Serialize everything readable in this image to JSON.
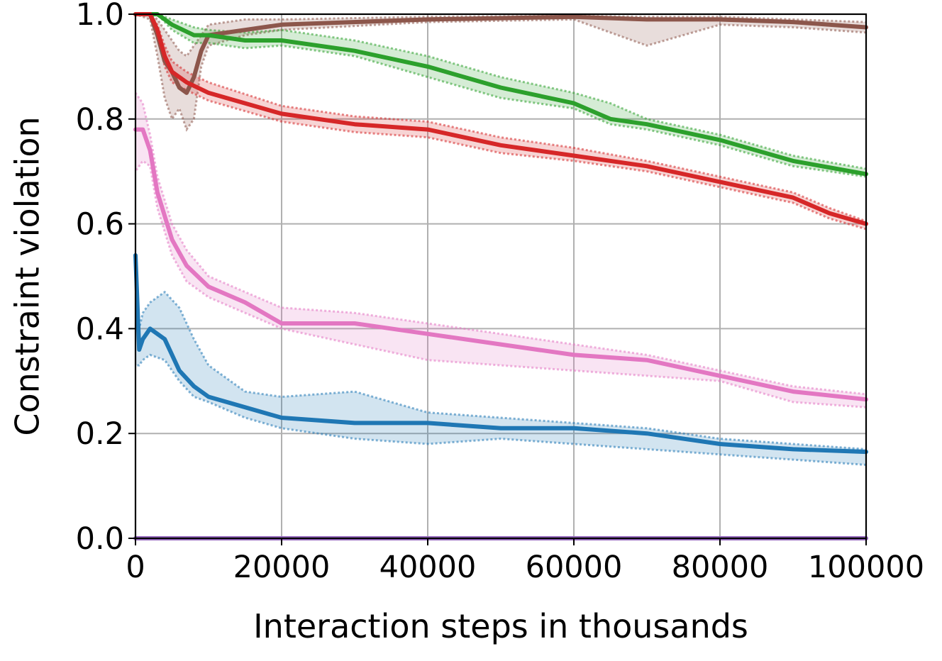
{
  "chart_data": {
    "type": "line",
    "title": "",
    "xlabel": "Interaction steps in thousands",
    "ylabel": "Constraint violation",
    "xlim": [
      0,
      100000
    ],
    "ylim": [
      0.0,
      1.0
    ],
    "xticks": [
      0,
      20000,
      40000,
      60000,
      80000,
      100000
    ],
    "xtick_labels": [
      "0",
      "20000",
      "40000",
      "60000",
      "80000",
      "100000"
    ],
    "yticks": [
      0.0,
      0.2,
      0.4,
      0.6,
      0.8,
      1.0
    ],
    "ytick_labels": [
      "0.0",
      "0.2",
      "0.4",
      "0.6",
      "0.8",
      "1.0"
    ],
    "grid": true,
    "legend": "none",
    "series": [
      {
        "color": "#8c564b",
        "x": [
          0,
          2000,
          3000,
          4000,
          5000,
          6000,
          7000,
          8000,
          9000,
          10000,
          15000,
          20000,
          40000,
          60000,
          70000,
          80000,
          90000,
          100000
        ],
        "y": [
          1.0,
          1.0,
          0.96,
          0.91,
          0.89,
          0.86,
          0.85,
          0.88,
          0.93,
          0.96,
          0.97,
          0.98,
          0.99,
          0.995,
          0.99,
          0.99,
          0.985,
          0.975
        ],
        "band_upper": [
          1.0,
          1.0,
          0.99,
          0.97,
          0.95,
          0.93,
          0.92,
          0.94,
          0.96,
          0.98,
          0.99,
          0.99,
          0.995,
          0.997,
          0.995,
          0.995,
          0.99,
          0.985
        ],
        "band_lower": [
          1.0,
          0.99,
          0.92,
          0.84,
          0.8,
          0.82,
          0.78,
          0.8,
          0.9,
          0.94,
          0.96,
          0.97,
          0.985,
          0.99,
          0.94,
          0.98,
          0.975,
          0.965
        ]
      },
      {
        "color": "#2ca02c",
        "x": [
          0,
          3000,
          5000,
          8000,
          10000,
          15000,
          20000,
          30000,
          40000,
          50000,
          60000,
          65000,
          70000,
          80000,
          90000,
          100000
        ],
        "y": [
          1.0,
          1.0,
          0.98,
          0.96,
          0.96,
          0.95,
          0.95,
          0.93,
          0.9,
          0.86,
          0.83,
          0.8,
          0.79,
          0.76,
          0.72,
          0.695
        ],
        "band_upper": [
          1.0,
          1.0,
          0.99,
          0.975,
          0.97,
          0.965,
          0.97,
          0.95,
          0.92,
          0.88,
          0.85,
          0.83,
          0.8,
          0.77,
          0.73,
          0.705
        ],
        "band_lower": [
          1.0,
          1.0,
          0.97,
          0.945,
          0.945,
          0.935,
          0.94,
          0.92,
          0.88,
          0.84,
          0.82,
          0.79,
          0.78,
          0.75,
          0.71,
          0.69
        ]
      },
      {
        "color": "#d62728",
        "x": [
          0,
          2000,
          3000,
          4000,
          5000,
          7000,
          10000,
          20000,
          30000,
          40000,
          50000,
          60000,
          70000,
          80000,
          90000,
          95000,
          100000
        ],
        "y": [
          1.0,
          1.0,
          0.97,
          0.92,
          0.89,
          0.87,
          0.85,
          0.81,
          0.79,
          0.78,
          0.75,
          0.73,
          0.71,
          0.68,
          0.65,
          0.62,
          0.6
        ],
        "band_upper": [
          1.0,
          1.0,
          0.98,
          0.94,
          0.91,
          0.89,
          0.87,
          0.825,
          0.805,
          0.795,
          0.765,
          0.745,
          0.72,
          0.69,
          0.66,
          0.63,
          0.605
        ],
        "band_lower": [
          1.0,
          1.0,
          0.96,
          0.9,
          0.87,
          0.855,
          0.835,
          0.795,
          0.775,
          0.765,
          0.735,
          0.72,
          0.7,
          0.67,
          0.64,
          0.61,
          0.59
        ]
      },
      {
        "color": "#e377c2",
        "x": [
          0,
          1000,
          2000,
          3000,
          5000,
          7000,
          10000,
          15000,
          20000,
          30000,
          40000,
          50000,
          60000,
          70000,
          80000,
          90000,
          100000
        ],
        "y": [
          0.78,
          0.78,
          0.74,
          0.66,
          0.57,
          0.52,
          0.48,
          0.45,
          0.41,
          0.41,
          0.39,
          0.37,
          0.35,
          0.34,
          0.31,
          0.28,
          0.265
        ],
        "band_upper": [
          0.85,
          0.83,
          0.77,
          0.69,
          0.6,
          0.55,
          0.5,
          0.47,
          0.44,
          0.43,
          0.41,
          0.39,
          0.37,
          0.35,
          0.32,
          0.29,
          0.275
        ],
        "band_lower": [
          0.7,
          0.72,
          0.71,
          0.63,
          0.54,
          0.49,
          0.46,
          0.43,
          0.4,
          0.37,
          0.34,
          0.33,
          0.32,
          0.31,
          0.3,
          0.26,
          0.25
        ]
      },
      {
        "color": "#1f77b4",
        "x": [
          0,
          500,
          1000,
          2000,
          4000,
          6000,
          8000,
          10000,
          15000,
          20000,
          30000,
          40000,
          50000,
          60000,
          70000,
          80000,
          90000,
          100000
        ],
        "y": [
          0.54,
          0.36,
          0.38,
          0.4,
          0.38,
          0.32,
          0.29,
          0.27,
          0.25,
          0.23,
          0.22,
          0.22,
          0.21,
          0.21,
          0.2,
          0.18,
          0.17,
          0.165
        ],
        "band_upper": [
          0.54,
          0.4,
          0.43,
          0.45,
          0.47,
          0.44,
          0.38,
          0.33,
          0.28,
          0.27,
          0.28,
          0.24,
          0.23,
          0.22,
          0.21,
          0.19,
          0.18,
          0.17
        ],
        "band_lower": [
          0.33,
          0.33,
          0.34,
          0.35,
          0.34,
          0.3,
          0.27,
          0.26,
          0.23,
          0.21,
          0.19,
          0.18,
          0.19,
          0.18,
          0.17,
          0.16,
          0.15,
          0.14
        ]
      },
      {
        "color": "#9467bd",
        "x": [
          0,
          100000
        ],
        "y": [
          0.0,
          0.0
        ]
      }
    ]
  }
}
